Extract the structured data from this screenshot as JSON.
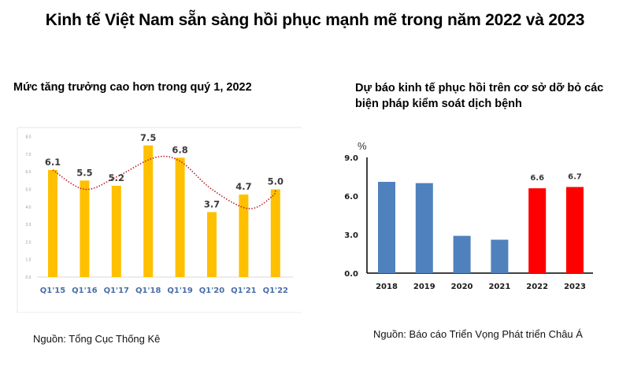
{
  "title": "Kinh tế Việt Nam sẵn sàng hồi phục mạnh mẽ trong năm 2022 và 2023",
  "left": {
    "subtitle": "Mức tăng trưởng cao hơn trong quý 1, 2022",
    "source": "Nguồn: Tổng Cục Thống Kê"
  },
  "right": {
    "subtitle": "Dự báo kinh tế phục hồi trên cơ sở dỡ bỏ các biện pháp kiểm soát dịch bệnh",
    "source": "Nguồn: Báo cáo Triển Vọng Phát triển Châu Á",
    "unit": "%"
  },
  "colors": {
    "left_bar": "#FFC000",
    "trend_line": "#C0202A",
    "right_bar_actual": "#4F81BD",
    "right_bar_forecast": "#FF0000",
    "left_category": "#4A6EA8"
  },
  "chart_data": [
    {
      "type": "bar",
      "title": "Mức tăng trưởng cao hơn trong quý 1, 2022",
      "categories": [
        "Q1'15",
        "Q1'16",
        "Q1'17",
        "Q1'18",
        "Q1'19",
        "Q1'20",
        "Q1'21",
        "Q1'22"
      ],
      "values": [
        6.1,
        5.5,
        5.2,
        7.5,
        6.8,
        3.7,
        4.7,
        5.0
      ],
      "data_labels": [
        "6.1",
        "5.5",
        "5.2",
        "7.5",
        "6.8",
        "3.7",
        "4.7",
        "5.0"
      ],
      "yticks": [
        "8.0",
        "7.0",
        "6.0",
        "5.0",
        "4.0",
        "3.0",
        "2.0",
        "1.0",
        "0.0"
      ],
      "ylim": [
        0,
        8
      ],
      "xlabel": "",
      "ylabel": "",
      "trendline": "smoothed dotted red trend line",
      "grid": false,
      "legend": null,
      "source": "Nguồn: Tổng Cục Thống Kê"
    },
    {
      "type": "bar",
      "title": "Dự báo kinh tế phục hồi trên cơ sở dỡ bỏ các biện pháp kiểm soát dịch bệnh",
      "categories": [
        "2018",
        "2019",
        "2020",
        "2021",
        "2022",
        "2023"
      ],
      "values": [
        7.1,
        7.0,
        2.9,
        2.6,
        6.6,
        6.7
      ],
      "data_labels": [
        "",
        "",
        "",
        "",
        "6.6",
        "6.7"
      ],
      "series_note": "2018–2021 actual (blue), 2022–2023 forecast (red)",
      "yticks": [
        "0.0",
        "3.0",
        "6.0",
        "9.0"
      ],
      "ylim": [
        0,
        9
      ],
      "ylabel": "%",
      "xlabel": "",
      "grid": false,
      "legend": null,
      "source": "Nguồn: Báo cáo Triển Vọng Phát triển Châu Á"
    }
  ]
}
